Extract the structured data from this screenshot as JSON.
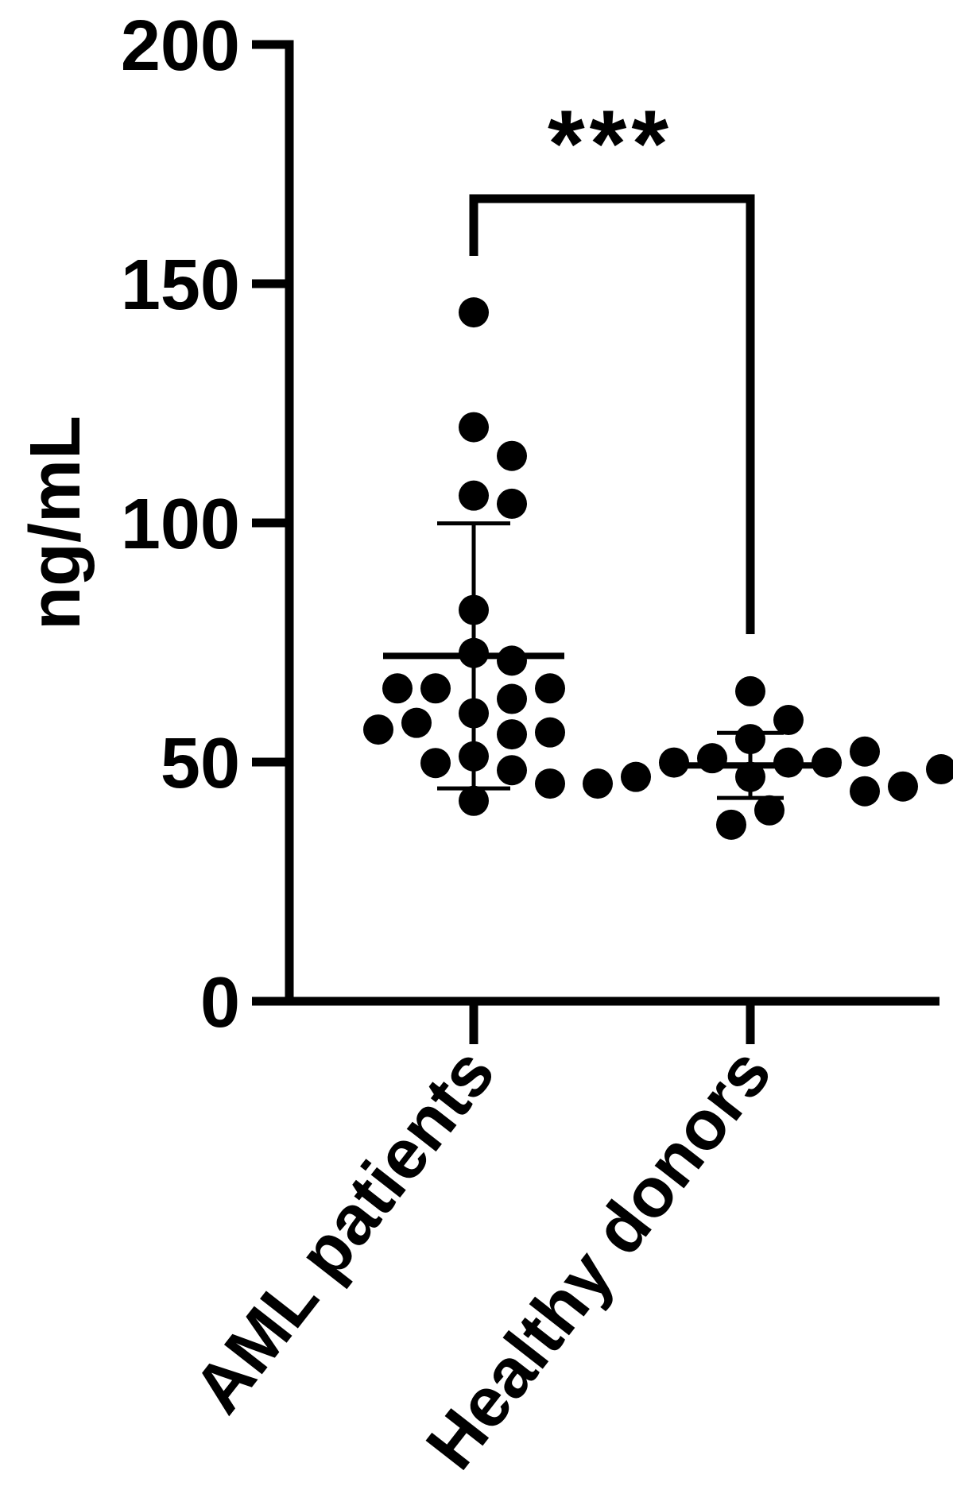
{
  "chart_data": {
    "type": "dot",
    "ylabel": "ng/mL",
    "annotation": "***",
    "categories": [
      "AML patients",
      "Healthy donors"
    ],
    "groups": [
      {
        "values": [
          144,
          120,
          114,
          105.7,
          104,
          81.8,
          72.8,
          71.2,
          60.2,
          65.4,
          65.4,
          65.4,
          63.2,
          58.2,
          55.8,
          56.2,
          56.8,
          51.2,
          49.8,
          48.3,
          45.5,
          41.9
        ],
        "mean": 72.2,
        "sd": 27.7
      },
      {
        "values": [
          64.8,
          58.8,
          54.8,
          46.9,
          49.9,
          50.8,
          49.9,
          49.9,
          52.2,
          46.9,
          43.9,
          44.9,
          45.5,
          39.9,
          36.9,
          48.5
        ],
        "mean": 49.3,
        "sd": 6.8
      }
    ],
    "color": "#000000",
    "ylim": [
      0,
      200
    ],
    "yticks": [
      0,
      50,
      100,
      150,
      200
    ]
  }
}
